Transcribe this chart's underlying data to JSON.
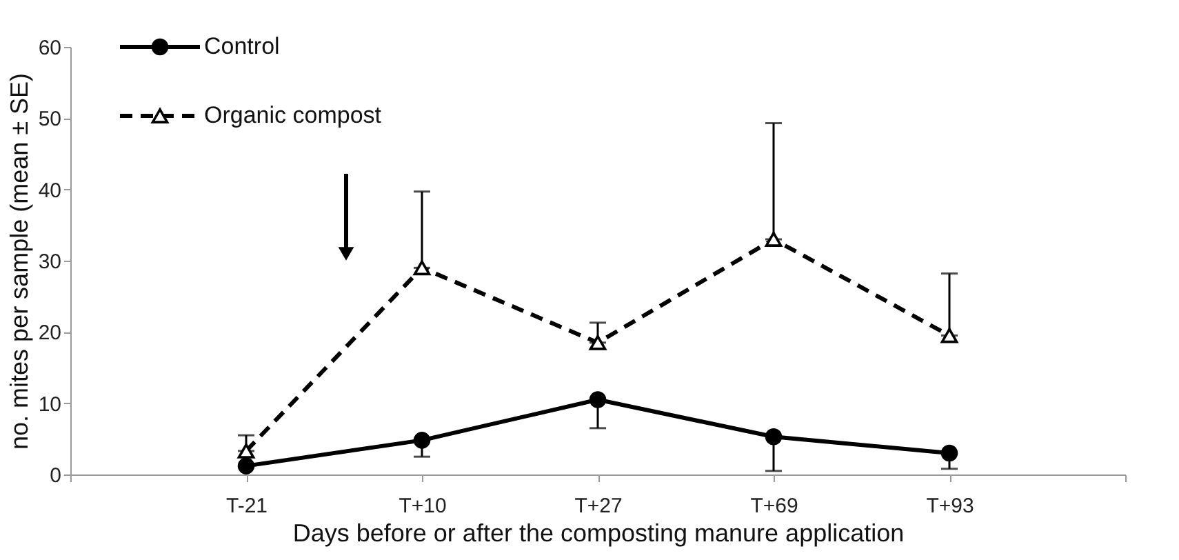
{
  "chart_data": {
    "type": "line",
    "xlabel": "Days before or after the composting manure application",
    "ylabel": "no. mites per sample (mean ± SE)",
    "categories": [
      null,
      "T-21",
      "T+10",
      "T+27",
      "T+69",
      "T+93",
      null
    ],
    "ylim": [
      0,
      60
    ],
    "yticks": [
      0,
      10,
      20,
      30,
      40,
      50,
      60
    ],
    "grid": false,
    "legend": "top left",
    "series": [
      {
        "name": "Control",
        "color": "#000000",
        "marker": "circle",
        "line_style": "solid",
        "values": [
          null,
          1.2,
          4.8,
          10.5,
          5.3,
          3.0,
          null
        ],
        "errors": [
          null,
          null,
          [
            2.5,
            4.8
          ],
          [
            6.5,
            10.5
          ],
          [
            0.5,
            5.3
          ],
          [
            0.8,
            3.0
          ],
          null
        ]
      },
      {
        "name": "Organic compost",
        "color": "#000000",
        "marker": "triangle",
        "line_style": "dashed",
        "values": [
          null,
          3.3,
          29,
          18.5,
          33,
          19.5,
          null
        ],
        "errors": [
          null,
          [
            3.3,
            5.5
          ],
          [
            29,
            39.7
          ],
          [
            18.5,
            21.3
          ],
          [
            33,
            49.3
          ],
          [
            19.5,
            28.2
          ],
          null
        ]
      }
    ]
  }
}
